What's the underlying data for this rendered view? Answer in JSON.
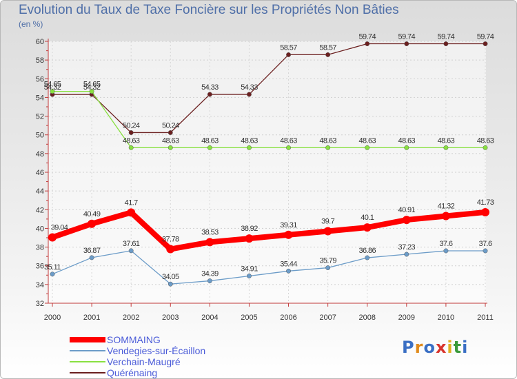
{
  "header": {
    "title": "Evolution du Taux de Taxe Foncière sur les Propriétés Non Bâties",
    "unit": "(en %)"
  },
  "logo": {
    "letters": [
      "P",
      "r",
      "o",
      "x",
      "i",
      "t",
      "i"
    ],
    "colors": [
      "#3a6fc4",
      "#e08a1a",
      "#3a6fc4",
      "#d8342c",
      "#e0b020",
      "#3a9a3a",
      "#3a6fc4"
    ]
  },
  "chart_data": {
    "type": "line",
    "title": "Evolution du Taux de Taxe Foncière sur les Propriétés Non Bâties",
    "ylabel": "(en %)",
    "xlabel": "",
    "ylim": [
      32,
      60
    ],
    "yticks": [
      32,
      34,
      36,
      38,
      40,
      42,
      44,
      46,
      48,
      50,
      52,
      54,
      56,
      58,
      60
    ],
    "x": [
      "2000",
      "2001",
      "2002",
      "2003",
      "2004",
      "2005",
      "2006",
      "2007",
      "2008",
      "2009",
      "2010",
      "2011"
    ],
    "grid": true,
    "legend_position": "bottom-left",
    "series": [
      {
        "name": "SOMMAING",
        "color": "#ff0000",
        "emphasis": "thick",
        "values": [
          39.04,
          40.49,
          41.7,
          37.78,
          38.53,
          38.92,
          39.31,
          39.7,
          40.1,
          40.91,
          41.32,
          41.73
        ],
        "labels": [
          "39.04",
          "40.49",
          "41.7",
          "37.78",
          "38.53",
          "38.92",
          "39.31",
          "39.7",
          "40.1",
          "40.91",
          "41.32",
          "41.73"
        ]
      },
      {
        "name": "Vendegies-sur-Écaillon",
        "color": "#6c9cc8",
        "emphasis": "thin",
        "values": [
          35.11,
          36.87,
          37.61,
          34.05,
          34.39,
          34.91,
          35.44,
          35.79,
          36.86,
          37.23,
          37.6,
          37.6
        ],
        "labels": [
          "35.11",
          "36.87",
          "37.61",
          "34.05",
          "34.39",
          "34.91",
          "35.44",
          "35.79",
          "36.86",
          "37.23",
          "37.6",
          "37.6"
        ]
      },
      {
        "name": "Verchain-Maugré",
        "color": "#88e040",
        "emphasis": "thin",
        "values": [
          54.65,
          54.65,
          48.63,
          48.63,
          48.63,
          48.63,
          48.63,
          48.63,
          48.63,
          48.63,
          48.63,
          48.63
        ],
        "labels": [
          "54.65",
          "54.65",
          "48.63",
          "48.63",
          "48.63",
          "48.63",
          "48.63",
          "48.63",
          "48.63",
          "48.63",
          "48.63",
          "48.63"
        ]
      },
      {
        "name": "Quérénaing",
        "color": "#6b1f1f",
        "emphasis": "thin",
        "values": [
          54.32,
          54.32,
          50.24,
          50.24,
          54.33,
          54.33,
          58.57,
          58.57,
          59.74,
          59.74,
          59.74,
          59.74
        ],
        "labels": [
          "54.32",
          "54.32",
          "50.24",
          "50.24",
          "54.33",
          "54.33",
          "58.57",
          "58.57",
          "59.74",
          "59.74",
          "59.74",
          "59.74"
        ]
      }
    ]
  }
}
